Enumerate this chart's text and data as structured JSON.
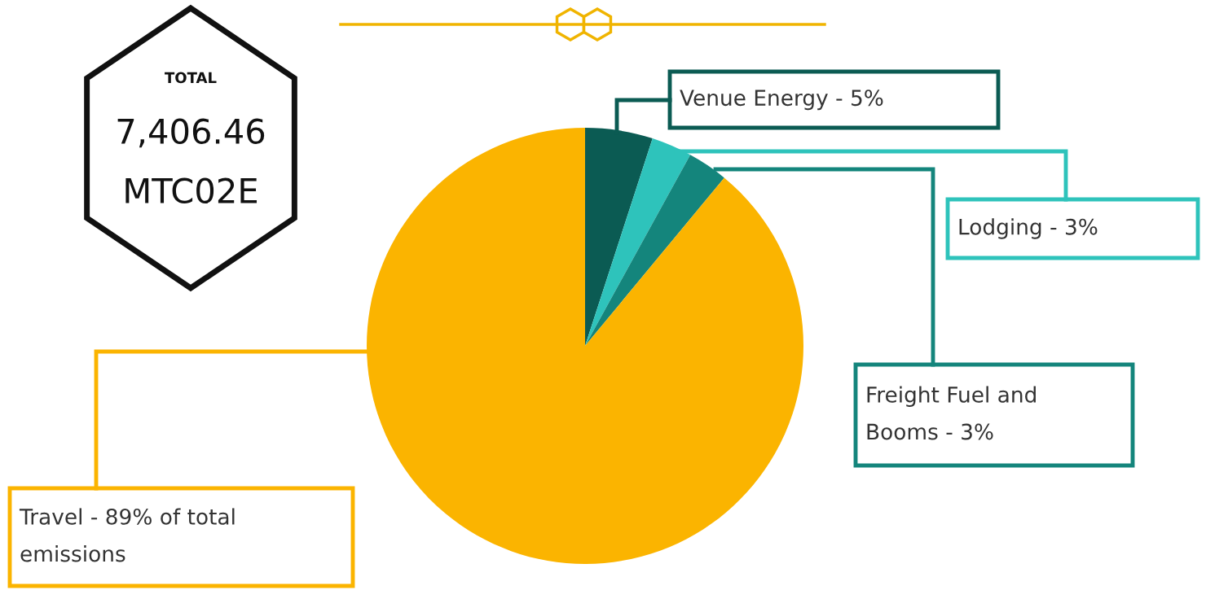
{
  "chart_data": {
    "type": "pie",
    "categories": [
      "Venue Energy - 5%",
      "Lodging - 3%",
      "Freight Fuel and\nBooms - 3%",
      "Travel - 89% of total\nemissions"
    ],
    "values": [
      5,
      3,
      3,
      89
    ],
    "colors": [
      "#0b5b53",
      "#2ec3bb",
      "#14857c",
      "#fbb400"
    ],
    "annotations": [
      "TOTAL",
      "7,406.46",
      "MTC02E"
    ]
  }
}
